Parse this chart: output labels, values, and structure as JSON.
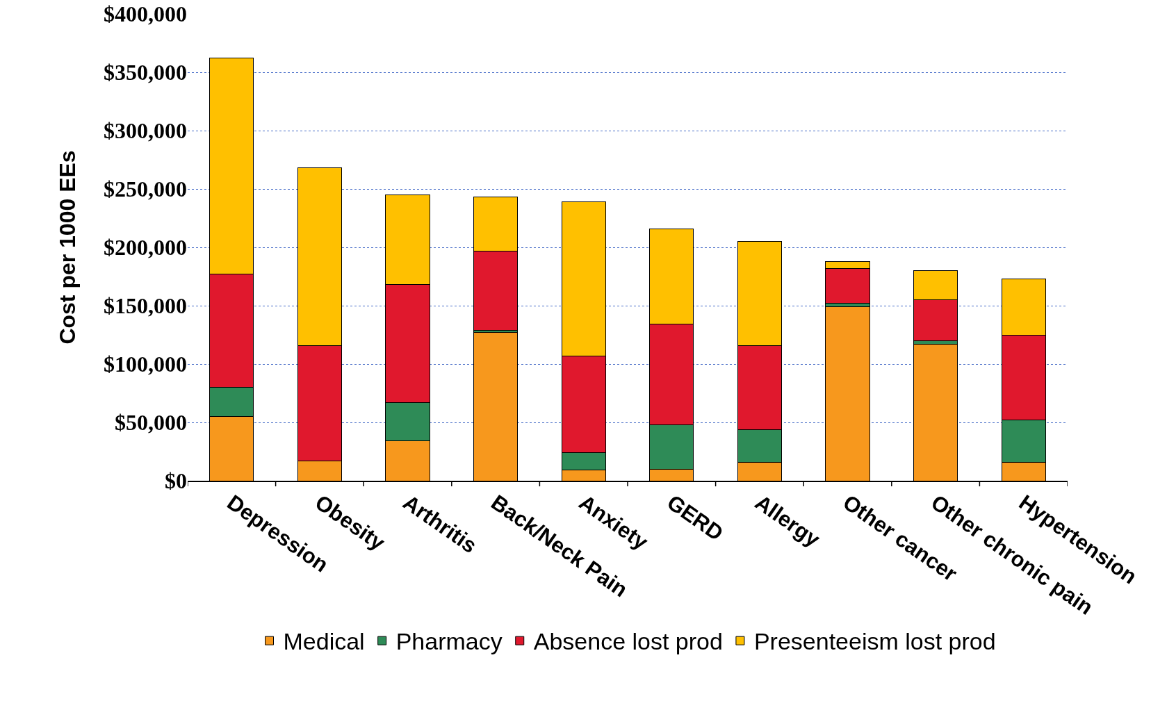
{
  "chart_data": {
    "type": "bar",
    "stacked": true,
    "ylabel": "Cost per 1000 EEs",
    "categories": [
      "Depression",
      "Obesity",
      "Arthritis",
      "Back/Neck Pain",
      "Anxiety",
      "GERD",
      "Allergy",
      "Other cancer",
      "Other chronic pain",
      "Hypertension"
    ],
    "series": [
      {
        "name": "Medical",
        "color": "#f7981d",
        "values": [
          55000,
          17000,
          34000,
          127000,
          9000,
          10000,
          16000,
          149000,
          117000,
          16000
        ]
      },
      {
        "name": "Pharmacy",
        "color": "#2e8b57",
        "values": [
          25000,
          0,
          33000,
          2000,
          15000,
          38000,
          28000,
          3000,
          3000,
          36000
        ]
      },
      {
        "name": "Absence lost prod",
        "color": "#e0182d",
        "values": [
          97000,
          99000,
          101000,
          68000,
          83000,
          86000,
          72000,
          30000,
          35000,
          73000
        ]
      },
      {
        "name": "Presenteeism lost prod",
        "color": "#ffc000",
        "values": [
          185000,
          152000,
          77000,
          46000,
          132000,
          82000,
          89000,
          6000,
          25000,
          48000
        ]
      }
    ],
    "ylim": [
      0,
      400000
    ],
    "yticks": [
      {
        "value": 0,
        "label": "$0"
      },
      {
        "value": 50000,
        "label": "$50,000"
      },
      {
        "value": 100000,
        "label": "$100,000"
      },
      {
        "value": 150000,
        "label": "$150,000"
      },
      {
        "value": 200000,
        "label": "$200,000"
      },
      {
        "value": 250000,
        "label": "$250,000"
      },
      {
        "value": 300000,
        "label": "$300,000"
      },
      {
        "value": 350000,
        "label": "$350,000"
      },
      {
        "value": 400000,
        "label": "$400,000"
      }
    ],
    "grid": "y",
    "legend": "bottom"
  }
}
